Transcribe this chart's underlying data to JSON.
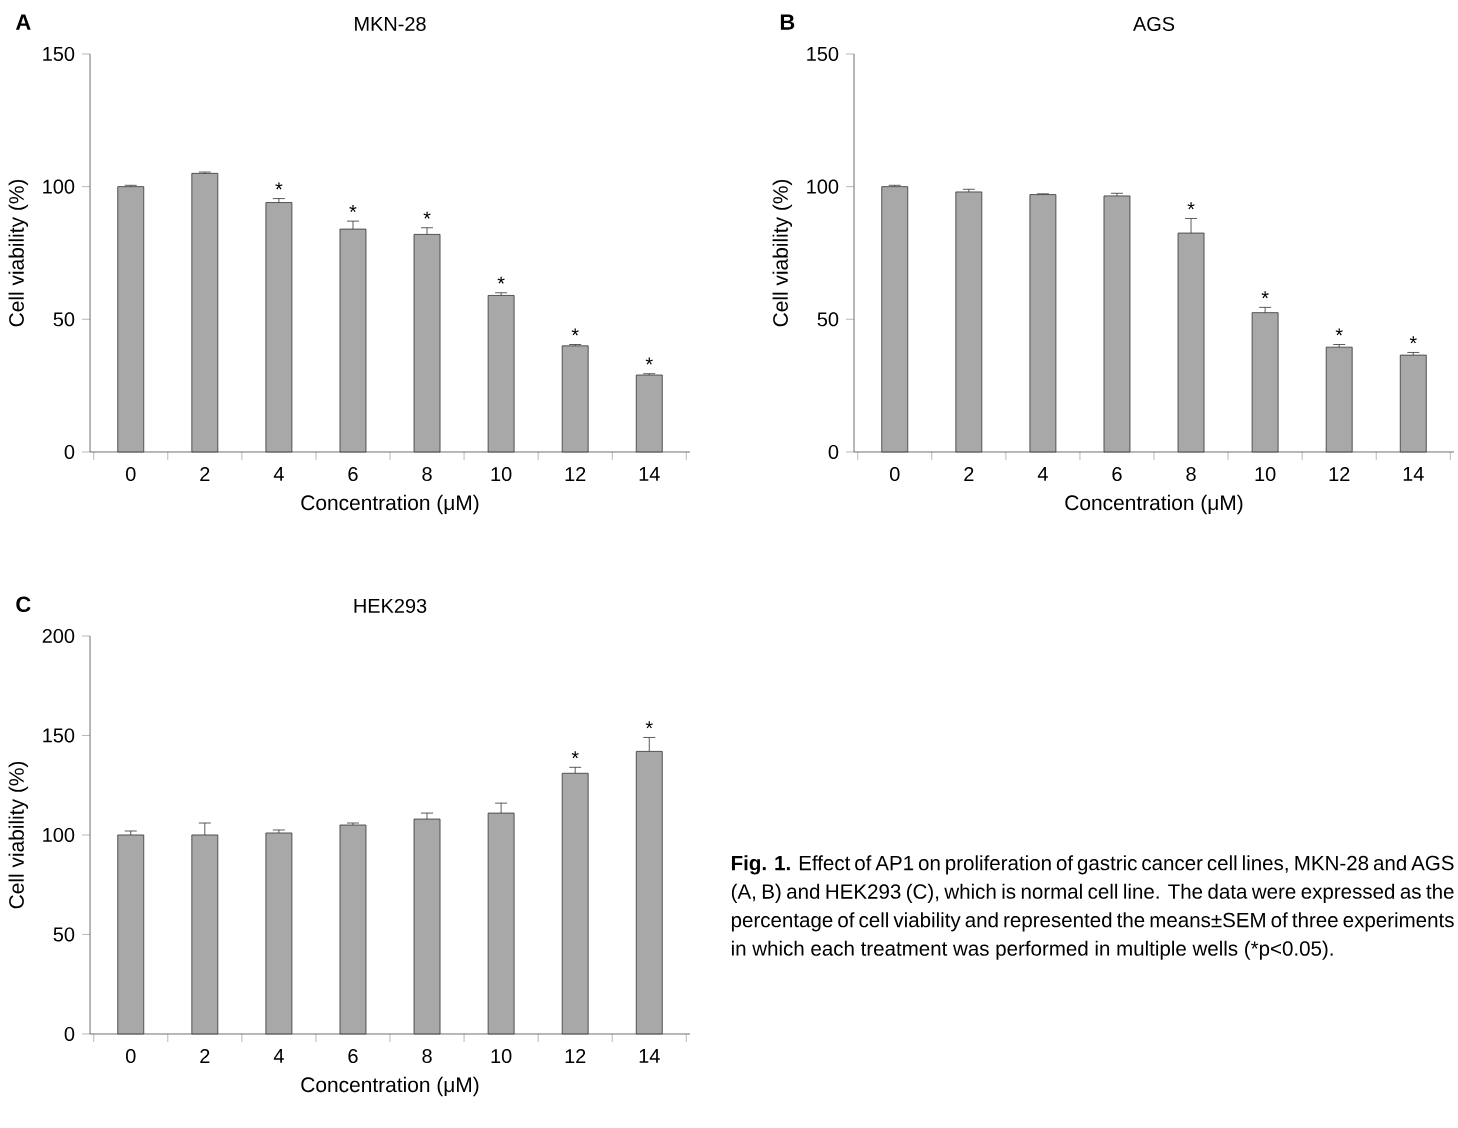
{
  "chart_data": [
    {
      "type": "bar",
      "title": "MKN-28",
      "xlabel": "Concentration (μM)",
      "ylabel": "Cell viability (%)",
      "categories": [
        "0",
        "2",
        "4",
        "6",
        "8",
        "10",
        "12",
        "14"
      ],
      "values": [
        100,
        105,
        94,
        84,
        82,
        59,
        40,
        29
      ],
      "errors": [
        0.5,
        0.5,
        1.5,
        3,
        2.5,
        1,
        0.5,
        0.5
      ],
      "color": "#a8a8a8",
      "ylim": [
        0,
        150
      ],
      "yticks": [
        0,
        50,
        100,
        150
      ],
      "grid": false,
      "annotations": [
        "A",
        {
          "text": "*",
          "x": "4",
          "y": 95.5
        },
        {
          "text": "*",
          "x": "6",
          "y": 87
        },
        {
          "text": "*",
          "x": "8",
          "y": 84.5
        },
        {
          "text": "*",
          "x": "10",
          "y": 60
        },
        {
          "text": "*",
          "x": "12",
          "y": 40.5
        },
        {
          "text": "*",
          "x": "14",
          "y": 29.5
        }
      ]
    },
    {
      "type": "bar",
      "title": "AGS",
      "xlabel": "Concentration (μM)",
      "ylabel": "Cell viability (%)",
      "categories": [
        "0",
        "2",
        "4",
        "6",
        "8",
        "10",
        "12",
        "14"
      ],
      "values": [
        100,
        98,
        97,
        96.5,
        82.5,
        52.5,
        39.5,
        36.5
      ],
      "errors": [
        0.5,
        1,
        0.3,
        1,
        5.5,
        2,
        1,
        1
      ],
      "color": "#a8a8a8",
      "ylim": [
        0,
        150
      ],
      "yticks": [
        0,
        50,
        100,
        150
      ],
      "grid": false,
      "annotations": [
        "B",
        {
          "text": "*",
          "x": "8",
          "y": 88
        },
        {
          "text": "*",
          "x": "10",
          "y": 54.5
        },
        {
          "text": "*",
          "x": "12",
          "y": 40.5
        },
        {
          "text": "*",
          "x": "14",
          "y": 37.5
        }
      ]
    },
    {
      "type": "bar",
      "title": "HEK293",
      "xlabel": "Concentration (μM)",
      "ylabel": "Cell viability (%)",
      "categories": [
        "0",
        "2",
        "4",
        "6",
        "8",
        "10",
        "12",
        "14"
      ],
      "values": [
        100,
        100,
        101,
        105,
        108,
        111,
        131,
        142
      ],
      "errors": [
        2,
        6,
        1.5,
        1,
        3,
        5,
        3,
        7
      ],
      "color": "#a8a8a8",
      "ylim": [
        0,
        200
      ],
      "yticks": [
        0,
        50,
        100,
        150,
        200
      ],
      "grid": false,
      "annotations": [
        "C",
        {
          "text": "*",
          "x": "12",
          "y": 134
        },
        {
          "text": "*",
          "x": "14",
          "y": 149
        },
        "**Fig. 1.** Effect of AP1 on proliferation of gastric cancer cell lines, MKN-28 and AGS (A, B) and HEK293 (C), which is normal cell line. The data were expressed as the percentage of cell viability and represented the means±SEM of three experiments in which each treatment was performed in multiple wells (*p<0.05)."
      ]
    }
  ]
}
